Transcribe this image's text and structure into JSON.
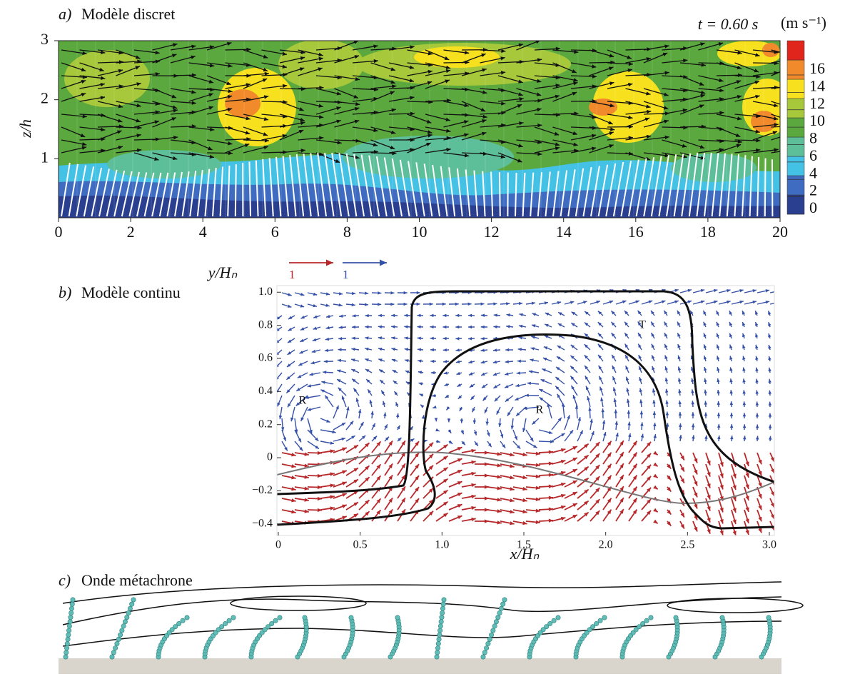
{
  "chart_data": [
    {
      "type": "contour-quiver",
      "label": "a)",
      "title": "Modèle discret",
      "time_label": "t = 0.60 s",
      "ylabel": "z/h",
      "xlim": [
        0,
        20
      ],
      "xticks": [
        0,
        2,
        4,
        6,
        8,
        10,
        12,
        14,
        16,
        18,
        20
      ],
      "ylim": [
        0,
        3
      ],
      "yticks": [
        1,
        2,
        3
      ],
      "colorbar_unit": "(m s⁻¹)",
      "colorbar_ticks": [
        0,
        2,
        4,
        6,
        8,
        10,
        12,
        14,
        16
      ],
      "colorbar_colors": [
        "#2a3f8f",
        "#3f6cc0",
        "#44c2e6",
        "#5dbf9a",
        "#5aa83e",
        "#a6c83a",
        "#f7e11e",
        "#f08a2a",
        "#e0251d"
      ]
    },
    {
      "type": "quiver",
      "label": "b)",
      "title": "Modèle continu",
      "xlabel": "x/Hₙ",
      "ylabel": "y/Hₙ",
      "xlim": [
        0,
        3
      ],
      "xticks": [
        0,
        0.5,
        {
          "value": 1,
          "label": "1.0"
        },
        1.5,
        {
          "value": 2,
          "label": "2.0"
        },
        2.5,
        {
          "value": 3,
          "label": "3.0"
        }
      ],
      "ylim": [
        -0.47,
        1.04
      ],
      "yticks": [
        {
          "value": -0.4,
          "label": "−0.4"
        },
        {
          "value": -0.2,
          "label": "−0.2"
        },
        0,
        0.2,
        0.4,
        0.6,
        0.8,
        {
          "value": 1,
          "label": "1.0"
        }
      ],
      "scale_arrows": [
        {
          "label": "1",
          "color": "#b8282a"
        },
        {
          "label": "1",
          "color": "#3550a8"
        }
      ],
      "annotations": [
        "R",
        "R",
        "T"
      ]
    }
  ],
  "panel_c": {
    "label": "c)",
    "title": "Onde métachrone"
  }
}
